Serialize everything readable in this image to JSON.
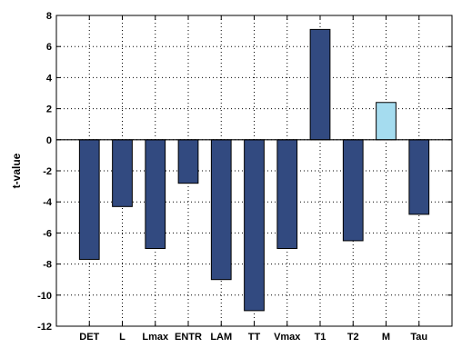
{
  "chart_data": {
    "type": "bar",
    "title": "",
    "xlabel": "",
    "ylabel": "t-value",
    "ylim": [
      -12,
      8
    ],
    "yticks": [
      8,
      6,
      4,
      2,
      0,
      -2,
      -4,
      -6,
      -8,
      -10,
      -12
    ],
    "grid": true,
    "categories": [
      "DET",
      "L",
      "Lmax",
      "ENTR",
      "LAM",
      "TT",
      "Vmax",
      "T1",
      "T2",
      "M",
      "Tau"
    ],
    "values": [
      -7.7,
      -4.3,
      -7.0,
      -2.8,
      -9.0,
      -11.0,
      -7.0,
      7.1,
      -6.5,
      2.4,
      -4.8
    ],
    "colors": [
      "#324a80",
      "#324a80",
      "#324a80",
      "#324a80",
      "#324a80",
      "#324a80",
      "#324a80",
      "#324a80",
      "#324a80",
      "#a5dcef",
      "#324a80"
    ]
  }
}
